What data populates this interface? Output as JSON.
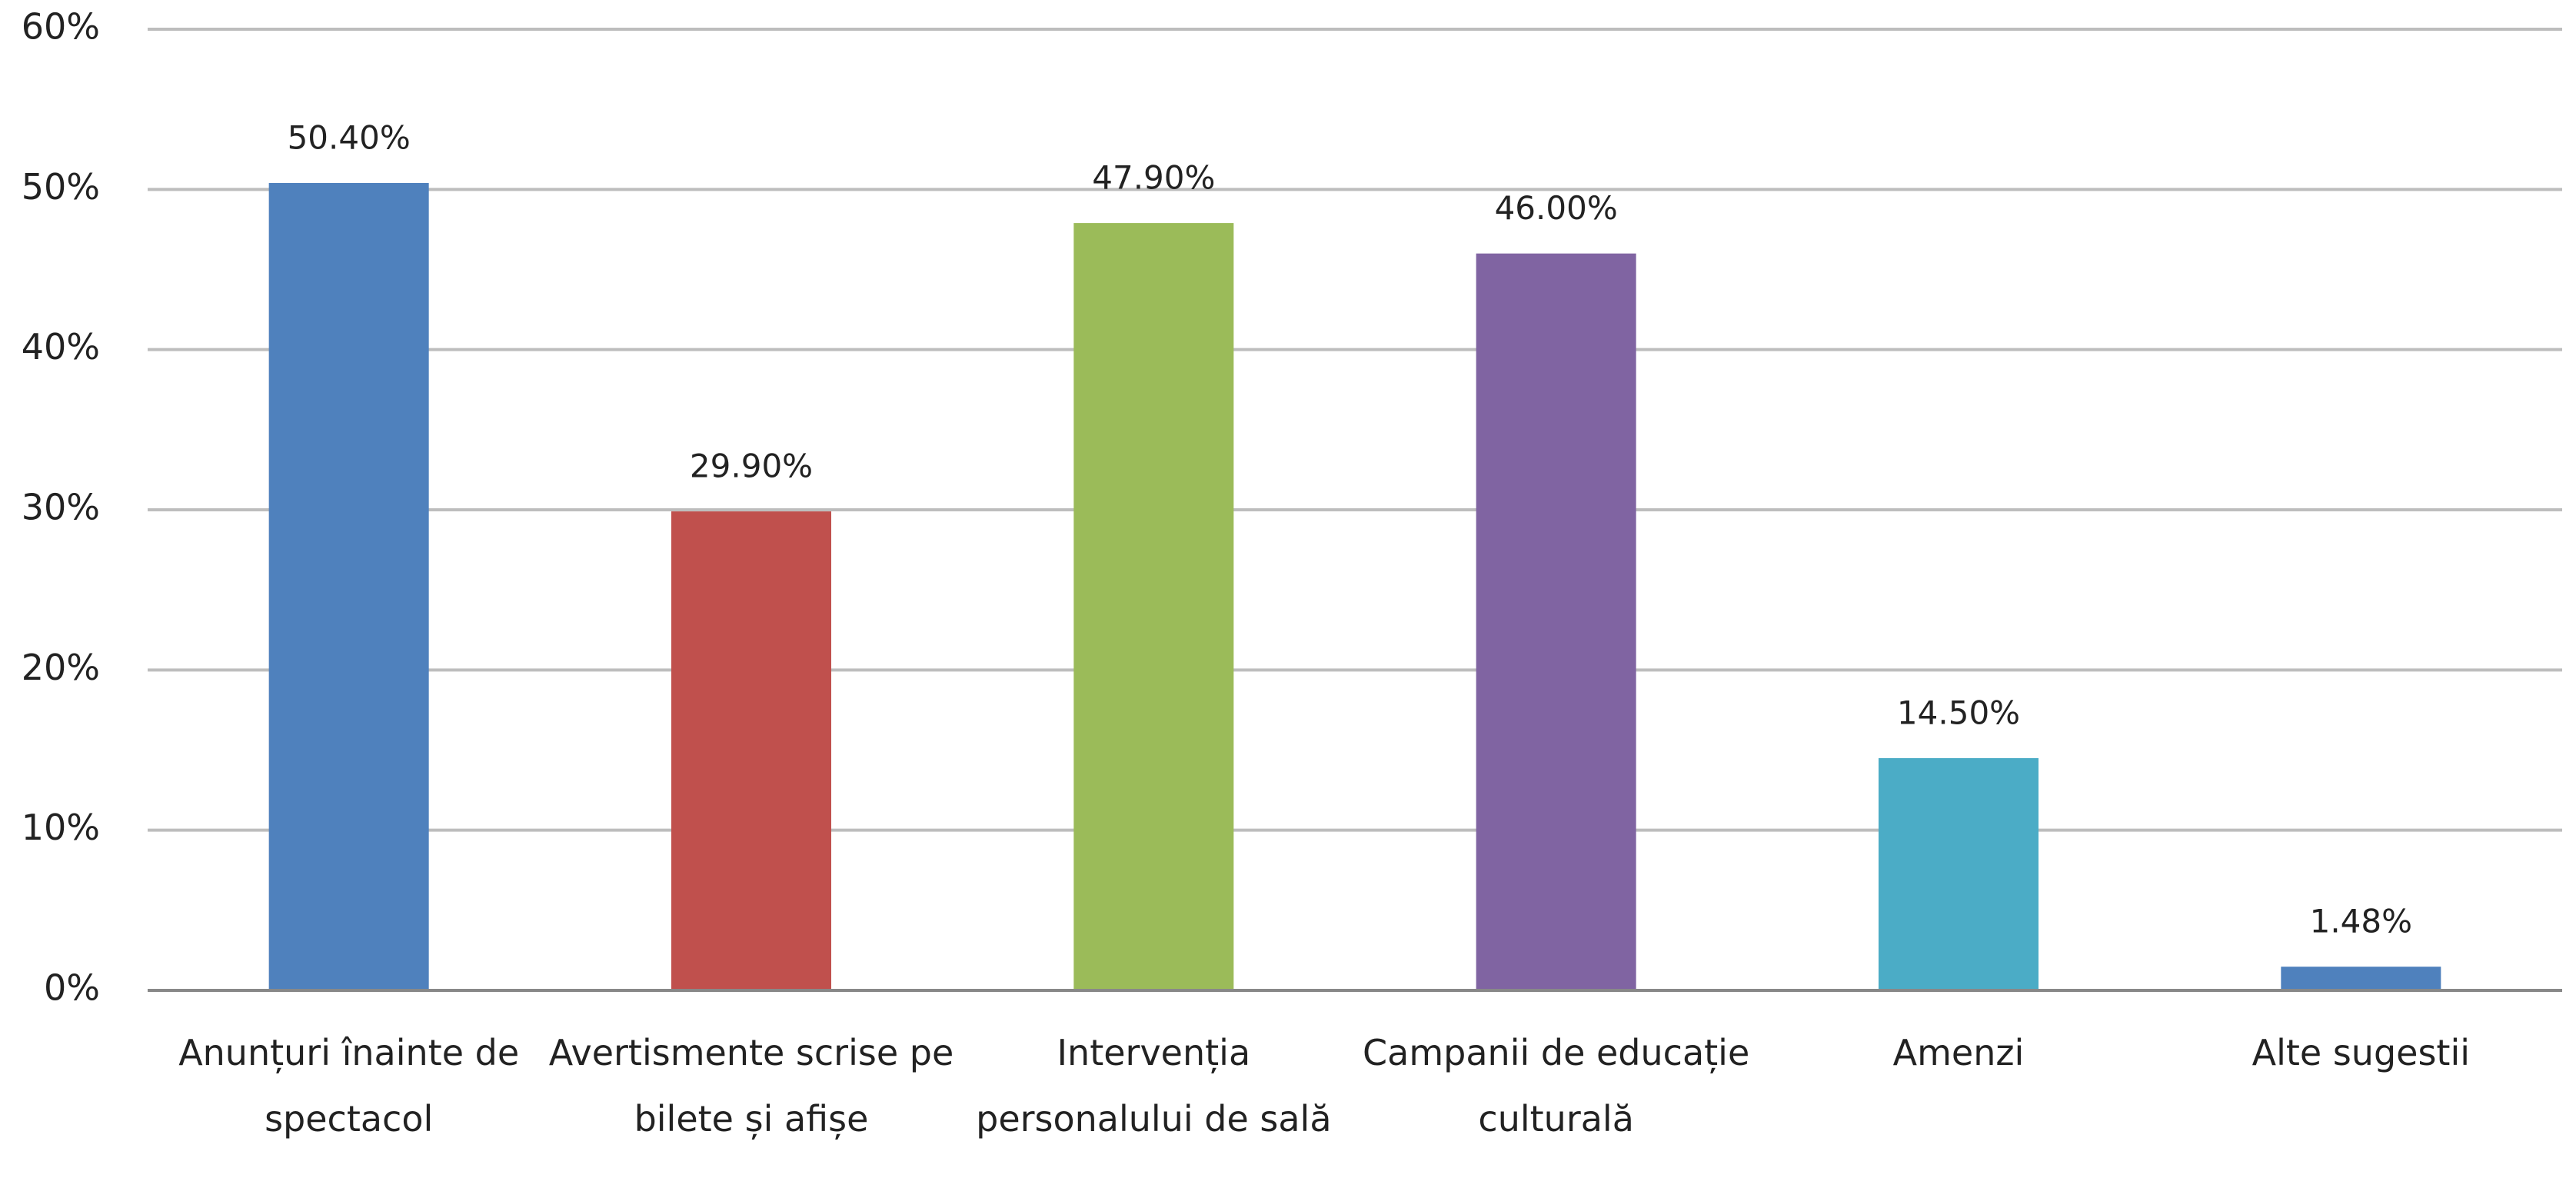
{
  "chart_data": {
    "type": "bar",
    "categories": [
      "Anunțuri înainte de spectacol",
      "Avertismente scrise pe bilete și afișe",
      "Intervenția personalului de sală",
      "Campanii de educație culturală",
      "Amenzi",
      "Alte sugestii"
    ],
    "values": [
      50.4,
      29.9,
      47.9,
      46.0,
      14.5,
      1.48
    ],
    "value_labels": [
      "50.40%",
      "29.90%",
      "47.90%",
      "46.00%",
      "14.50%",
      "1.48%"
    ],
    "colors": [
      "#4f81bd",
      "#c0504d",
      "#9bbb59",
      "#8064a2",
      "#4bacc6",
      "#4f81bd"
    ],
    "ylim": [
      0,
      60
    ],
    "yticks": [
      {
        "value": 0,
        "label": "0%"
      },
      {
        "value": 10,
        "label": "10%"
      },
      {
        "value": 20,
        "label": "20%"
      },
      {
        "value": 30,
        "label": "30%"
      },
      {
        "value": 40,
        "label": "40%"
      },
      {
        "value": 50,
        "label": "50%"
      },
      {
        "value": 60,
        "label": "60%"
      }
    ],
    "grid": true
  }
}
